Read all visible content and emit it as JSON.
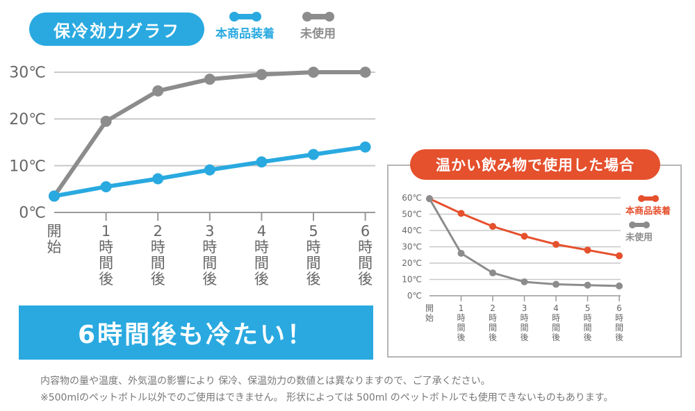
{
  "header": {
    "title": "保冷効力グラフ",
    "legend": [
      {
        "label": "本商品装着",
        "color": "#29a9e0"
      },
      {
        "label": "未使用",
        "color": "#8c8c8c"
      }
    ]
  },
  "banner_text": "6時間後も冷たい！",
  "inset": {
    "title": "温かい飲み物で使用した場合",
    "title_color": "#e5502d",
    "legend": [
      {
        "label": "本商品装着",
        "color": "#e5502d"
      },
      {
        "label": "未使用",
        "color": "#8c8c8c"
      }
    ]
  },
  "notes": [
    "内容物の量や温度、外気温の影響により 保冷、保温効力の数値とは異なりますので、ご了承ください。",
    "※500mlのペットボトル以外でのご使用はできません。 形状によっては 500ml のペットボトルでも使用できないものもあります。"
  ],
  "chart_data": [
    {
      "type": "line",
      "title": "保冷効力グラフ",
      "categories": [
        "開始",
        "1時間後",
        "2時間後",
        "3時間後",
        "4時間後",
        "5時間後",
        "6時間後"
      ],
      "category_labels": [
        [
          "開",
          "始"
        ],
        [
          "1",
          "時",
          "間",
          "後"
        ],
        [
          "2",
          "時",
          "間",
          "後"
        ],
        [
          "3",
          "時",
          "間",
          "後"
        ],
        [
          "4",
          "時",
          "間",
          "後"
        ],
        [
          "5",
          "時",
          "間",
          "後"
        ],
        [
          "6",
          "時",
          "間",
          "後"
        ]
      ],
      "y_ticks": [
        0,
        10,
        20,
        30
      ],
      "y_tick_labels": [
        "0℃",
        "10℃",
        "20℃",
        "30℃"
      ],
      "ylim": [
        0,
        30
      ],
      "series": [
        {
          "name": "未使用",
          "color": "#8c8c8c",
          "values": [
            3.5,
            19.5,
            26,
            28.5,
            29.5,
            30,
            30
          ]
        },
        {
          "name": "本商品装着",
          "color": "#29a9e0",
          "values": [
            3.5,
            5.5,
            7.2,
            9.1,
            10.8,
            12.4,
            14
          ]
        }
      ]
    },
    {
      "type": "line",
      "title": "温かい飲み物で使用した場合",
      "categories": [
        "開始",
        "1時間後",
        "2時間後",
        "3時間後",
        "4時間後",
        "5時間後",
        "6時間後"
      ],
      "category_labels": [
        [
          "開",
          "始"
        ],
        [
          "1",
          "時",
          "間",
          "後"
        ],
        [
          "2",
          "時",
          "間",
          "後"
        ],
        [
          "3",
          "時",
          "間",
          "後"
        ],
        [
          "4",
          "時",
          "間",
          "後"
        ],
        [
          "5",
          "時",
          "間",
          "後"
        ],
        [
          "6",
          "時",
          "間",
          "後"
        ]
      ],
      "y_ticks": [
        0,
        10,
        20,
        30,
        40,
        50,
        60
      ],
      "y_tick_labels": [
        "0℃",
        "10℃",
        "20℃",
        "30℃",
        "40℃",
        "50℃",
        "60℃"
      ],
      "ylim": [
        0,
        60
      ],
      "series": [
        {
          "name": "本商品装着",
          "color": "#e5502d",
          "values": [
            59.5,
            50.5,
            42.5,
            36.5,
            31.5,
            28,
            24.5
          ]
        },
        {
          "name": "未使用",
          "color": "#8c8c8c",
          "values": [
            59.5,
            26,
            14,
            8.5,
            7,
            6.5,
            6
          ]
        }
      ]
    }
  ]
}
